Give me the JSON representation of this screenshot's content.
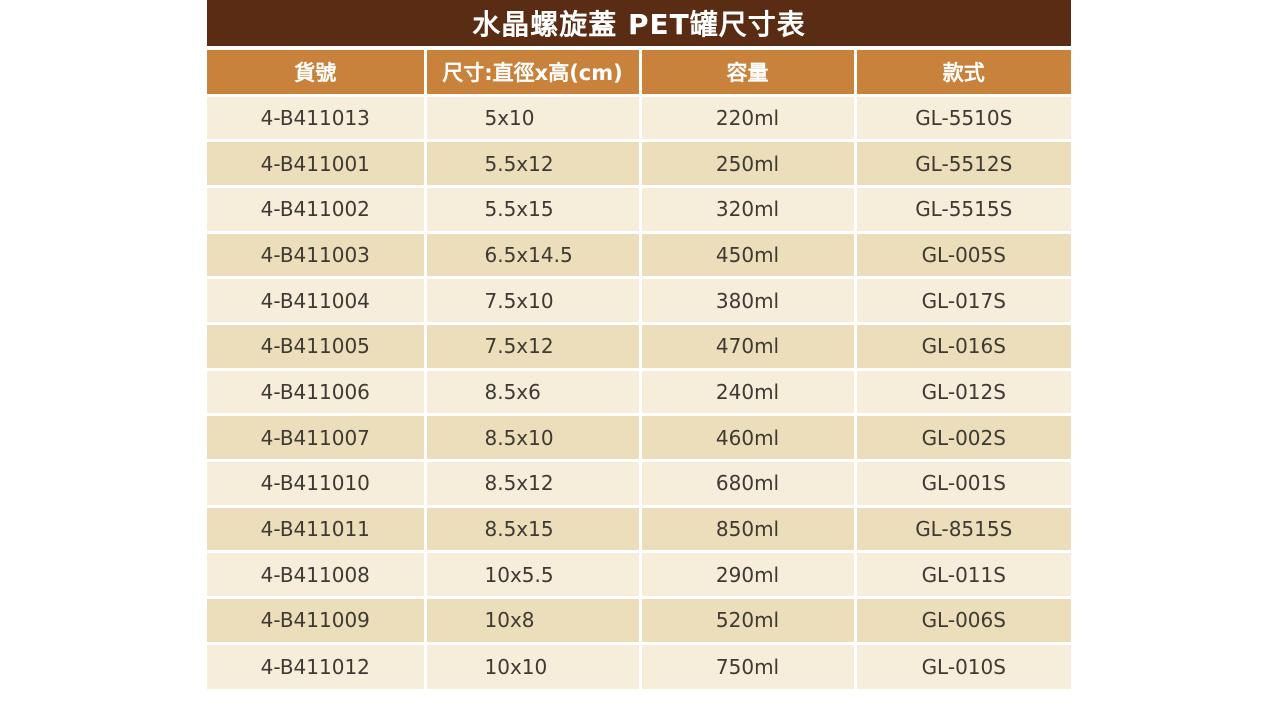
{
  "title": "水晶螺旋蓋 PET罐尺寸表",
  "colors": {
    "title_bg": "#5A2C13",
    "title_text": "#FFFFFF",
    "header_bg": "#C9823C",
    "header_text": "#FFFFFF",
    "row_odd_bg": "#F6EEDA",
    "row_even_bg": "#ECDEBA",
    "cell_text": "#3E3A33",
    "divider": "#FFFFFF",
    "page_bg": "#FFFFFF"
  },
  "table": {
    "columns": [
      "貨號",
      "尺寸:直徑x高(cm)",
      "容量",
      "款式"
    ],
    "rows": [
      [
        "4-B411013",
        "5x10",
        "220ml",
        "GL-5510S"
      ],
      [
        "4-B411001",
        "5.5x12",
        "250ml",
        "GL-5512S"
      ],
      [
        "4-B411002",
        "5.5x15",
        "320ml",
        "GL-5515S"
      ],
      [
        "4-B411003",
        "6.5x14.5",
        "450ml",
        "GL-005S"
      ],
      [
        "4-B411004",
        "7.5x10",
        "380ml",
        "GL-017S"
      ],
      [
        "4-B411005",
        "7.5x12",
        "470ml",
        "GL-016S"
      ],
      [
        "4-B411006",
        "8.5x6",
        "240ml",
        "GL-012S"
      ],
      [
        "4-B411007",
        "8.5x10",
        "460ml",
        "GL-002S"
      ],
      [
        "4-B411010",
        "8.5x12",
        "680ml",
        "GL-001S"
      ],
      [
        "4-B411011",
        "8.5x15",
        "850ml",
        "GL-8515S"
      ],
      [
        "4-B411008",
        "10x5.5",
        "290ml",
        "GL-011S"
      ],
      [
        "4-B411009",
        "10x8",
        "520ml",
        "GL-006S"
      ],
      [
        "4-B411012",
        "10x10",
        "750ml",
        "GL-010S"
      ]
    ]
  },
  "chart_data": {
    "type": "table",
    "title": "水晶螺旋蓋 PET罐尺寸表",
    "columns": [
      "貨號",
      "尺寸:直徑x高(cm)",
      "容量",
      "款式"
    ],
    "rows": [
      [
        "4-B411013",
        "5x10",
        "220ml",
        "GL-5510S"
      ],
      [
        "4-B411001",
        "5.5x12",
        "250ml",
        "GL-5512S"
      ],
      [
        "4-B411002",
        "5.5x15",
        "320ml",
        "GL-5515S"
      ],
      [
        "4-B411003",
        "6.5x14.5",
        "450ml",
        "GL-005S"
      ],
      [
        "4-B411004",
        "7.5x10",
        "380ml",
        "GL-017S"
      ],
      [
        "4-B411005",
        "7.5x12",
        "470ml",
        "GL-016S"
      ],
      [
        "4-B411006",
        "8.5x6",
        "240ml",
        "GL-012S"
      ],
      [
        "4-B411007",
        "8.5x10",
        "460ml",
        "GL-002S"
      ],
      [
        "4-B411010",
        "8.5x12",
        "680ml",
        "GL-001S"
      ],
      [
        "4-B411011",
        "8.5x15",
        "850ml",
        "GL-8515S"
      ],
      [
        "4-B411008",
        "10x5.5",
        "290ml",
        "GL-011S"
      ],
      [
        "4-B411009",
        "10x8",
        "520ml",
        "GL-006S"
      ],
      [
        "4-B411012",
        "10x10",
        "750ml",
        "GL-010S"
      ]
    ],
    "layout": {
      "header_position": "top",
      "zebra_striping": true,
      "column_count": 4,
      "row_count": 13
    }
  }
}
